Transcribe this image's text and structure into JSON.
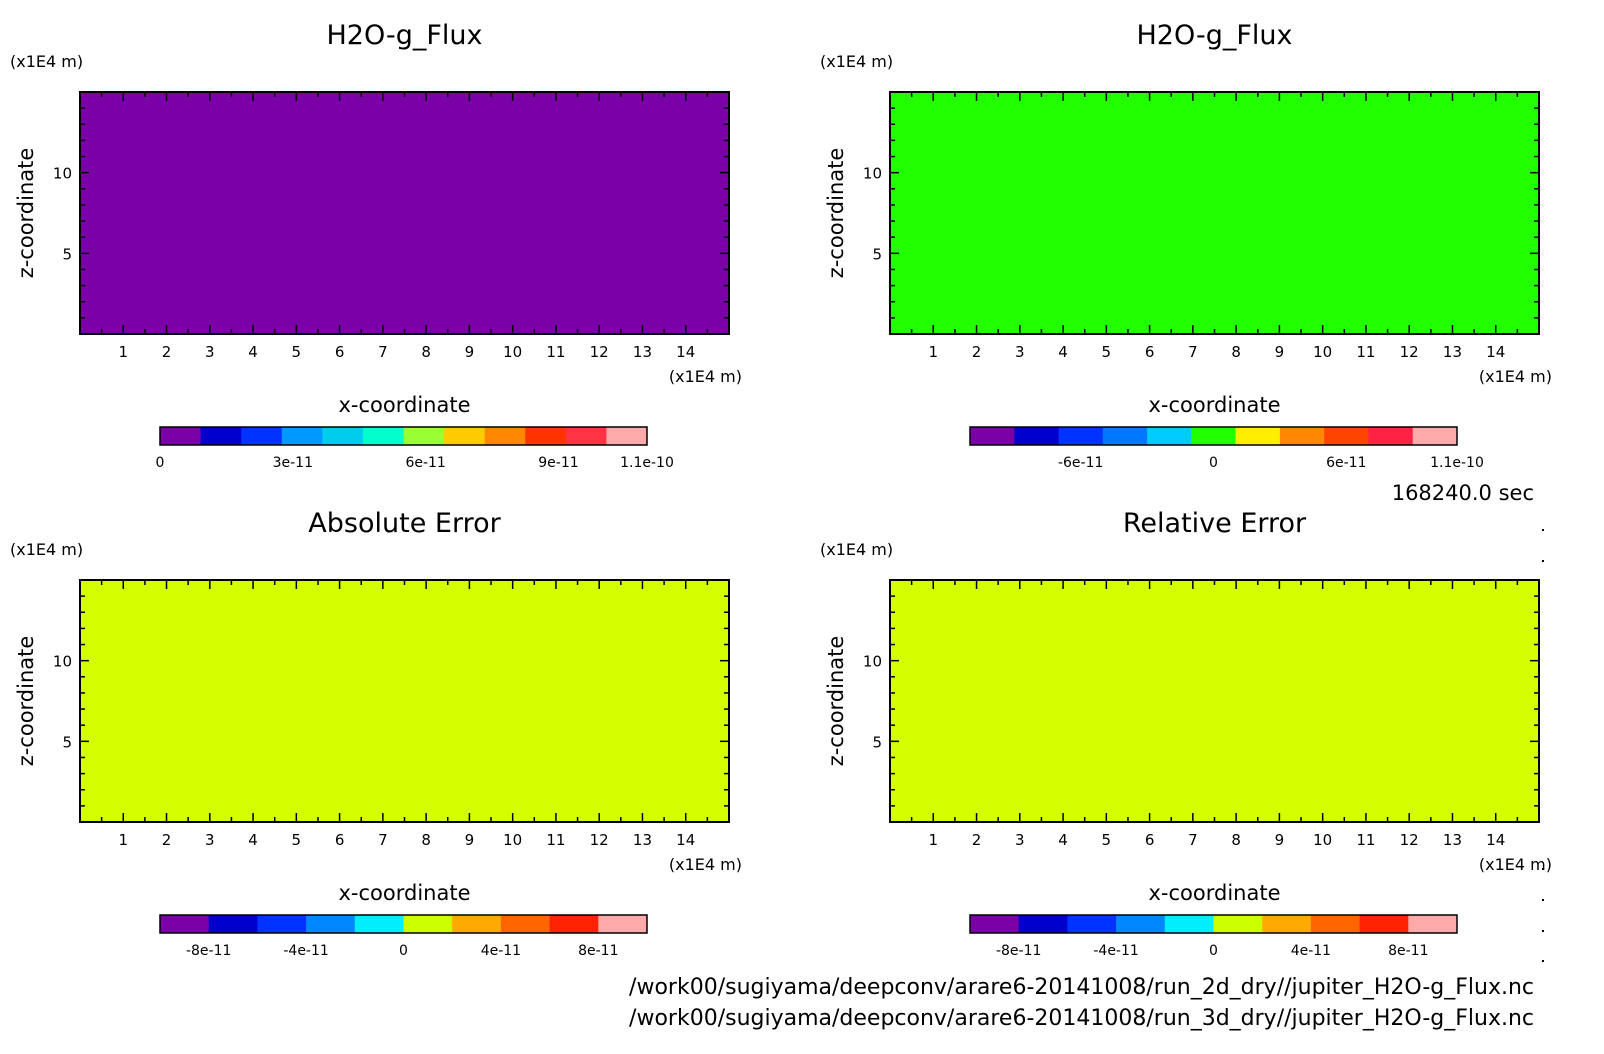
{
  "time_label": "168240.0 sec",
  "footer": {
    "line1": "/work00/sugiyama/deepconv/arare6-20141008/run_2d_dry//jupiter_H2O-g_Flux.nc",
    "line2": "/work00/sugiyama/deepconv/arare6-20141008/run_3d_dry//jupiter_H2O-g_Flux.nc"
  },
  "chart_data": [
    {
      "type": "heatmap",
      "title": "H2O-g_Flux",
      "xlabel": "x-coordinate",
      "ylabel": "z-coordinate",
      "x_unit": "(x1E4 m)",
      "y_unit": "(x1E4 m)",
      "xlim": [
        0,
        15
      ],
      "ylim": [
        0,
        15
      ],
      "x_ticks": [
        1,
        2,
        3,
        4,
        5,
        6,
        7,
        8,
        9,
        10,
        11,
        12,
        13,
        14
      ],
      "y_ticks": [
        5,
        10
      ],
      "fill_color": "#7a00a8",
      "colorbar": {
        "colors": [
          "#7a00a8",
          "#0000cc",
          "#0033ff",
          "#0099ff",
          "#00ccee",
          "#00ffcc",
          "#99ff33",
          "#ffcc00",
          "#ff8800",
          "#ff3300",
          "#ff3344",
          "#ffaaaa"
        ],
        "range": [
          0,
          1.1e-10
        ],
        "labels": [
          {
            "text": "0",
            "value": 0
          },
          {
            "text": "3e-11",
            "value": 3e-11
          },
          {
            "text": "6e-11",
            "value": 6e-11
          },
          {
            "text": "9e-11",
            "value": 9e-11
          },
          {
            "text": "1.1e-10",
            "value": 1.1e-10
          }
        ]
      }
    },
    {
      "type": "heatmap",
      "title": "H2O-g_Flux",
      "xlabel": "x-coordinate",
      "ylabel": "z-coordinate",
      "x_unit": "(x1E4 m)",
      "y_unit": "(x1E4 m)",
      "xlim": [
        0,
        15
      ],
      "ylim": [
        0,
        15
      ],
      "x_ticks": [
        1,
        2,
        3,
        4,
        5,
        6,
        7,
        8,
        9,
        10,
        11,
        12,
        13,
        14
      ],
      "y_ticks": [
        5,
        10
      ],
      "fill_color": "#22ff00",
      "colorbar": {
        "colors": [
          "#7a00a8",
          "#0000cc",
          "#0033ff",
          "#0077ff",
          "#00ccff",
          "#22ff00",
          "#ffee00",
          "#ff8800",
          "#ff4400",
          "#ff2244",
          "#ffaaaa"
        ],
        "range": [
          -1.1e-10,
          1.1e-10
        ],
        "labels": [
          {
            "text": "-6e-11",
            "value": -6e-11
          },
          {
            "text": "0",
            "value": 0
          },
          {
            "text": "6e-11",
            "value": 6e-11
          },
          {
            "text": "1.1e-10",
            "value": 1.1e-10
          }
        ]
      }
    },
    {
      "type": "heatmap",
      "title": "Absolute Error",
      "xlabel": "x-coordinate",
      "ylabel": "z-coordinate",
      "x_unit": "(x1E4 m)",
      "y_unit": "(x1E4 m)",
      "xlim": [
        0,
        15
      ],
      "ylim": [
        0,
        15
      ],
      "x_ticks": [
        1,
        2,
        3,
        4,
        5,
        6,
        7,
        8,
        9,
        10,
        11,
        12,
        13,
        14
      ],
      "y_ticks": [
        5,
        10
      ],
      "fill_color": "#d4ff00",
      "colorbar": {
        "colors": [
          "#7a00a8",
          "#0000cc",
          "#0033ff",
          "#0088ff",
          "#00eeff",
          "#ccff00",
          "#ffaa00",
          "#ff6600",
          "#ff2200",
          "#ffaaaa"
        ],
        "range": [
          -1e-10,
          1e-10
        ],
        "labels": [
          {
            "text": "-8e-11",
            "value": -8e-11
          },
          {
            "text": "-4e-11",
            "value": -4e-11
          },
          {
            "text": "0",
            "value": 0
          },
          {
            "text": "4e-11",
            "value": 4e-11
          },
          {
            "text": "8e-11",
            "value": 8e-11
          }
        ]
      }
    },
    {
      "type": "heatmap",
      "title": "Relative Error",
      "xlabel": "x-coordinate",
      "ylabel": "z-coordinate",
      "x_unit": "(x1E4 m)",
      "y_unit": "(x1E4 m)",
      "xlim": [
        0,
        15
      ],
      "ylim": [
        0,
        15
      ],
      "x_ticks": [
        1,
        2,
        3,
        4,
        5,
        6,
        7,
        8,
        9,
        10,
        11,
        12,
        13,
        14
      ],
      "y_ticks": [
        5,
        10
      ],
      "fill_color": "#d4ff00",
      "colorbar": {
        "colors": [
          "#7a00a8",
          "#0000cc",
          "#0033ff",
          "#0088ff",
          "#00eeff",
          "#ccff00",
          "#ffaa00",
          "#ff6600",
          "#ff2200",
          "#ffaaaa"
        ],
        "range": [
          -1e-10,
          1e-10
        ],
        "labels": [
          {
            "text": "-8e-11",
            "value": -8e-11
          },
          {
            "text": "-4e-11",
            "value": -4e-11
          },
          {
            "text": "0",
            "value": 0
          },
          {
            "text": "4e-11",
            "value": 4e-11
          },
          {
            "text": "8e-11",
            "value": 8e-11
          }
        ]
      }
    }
  ]
}
